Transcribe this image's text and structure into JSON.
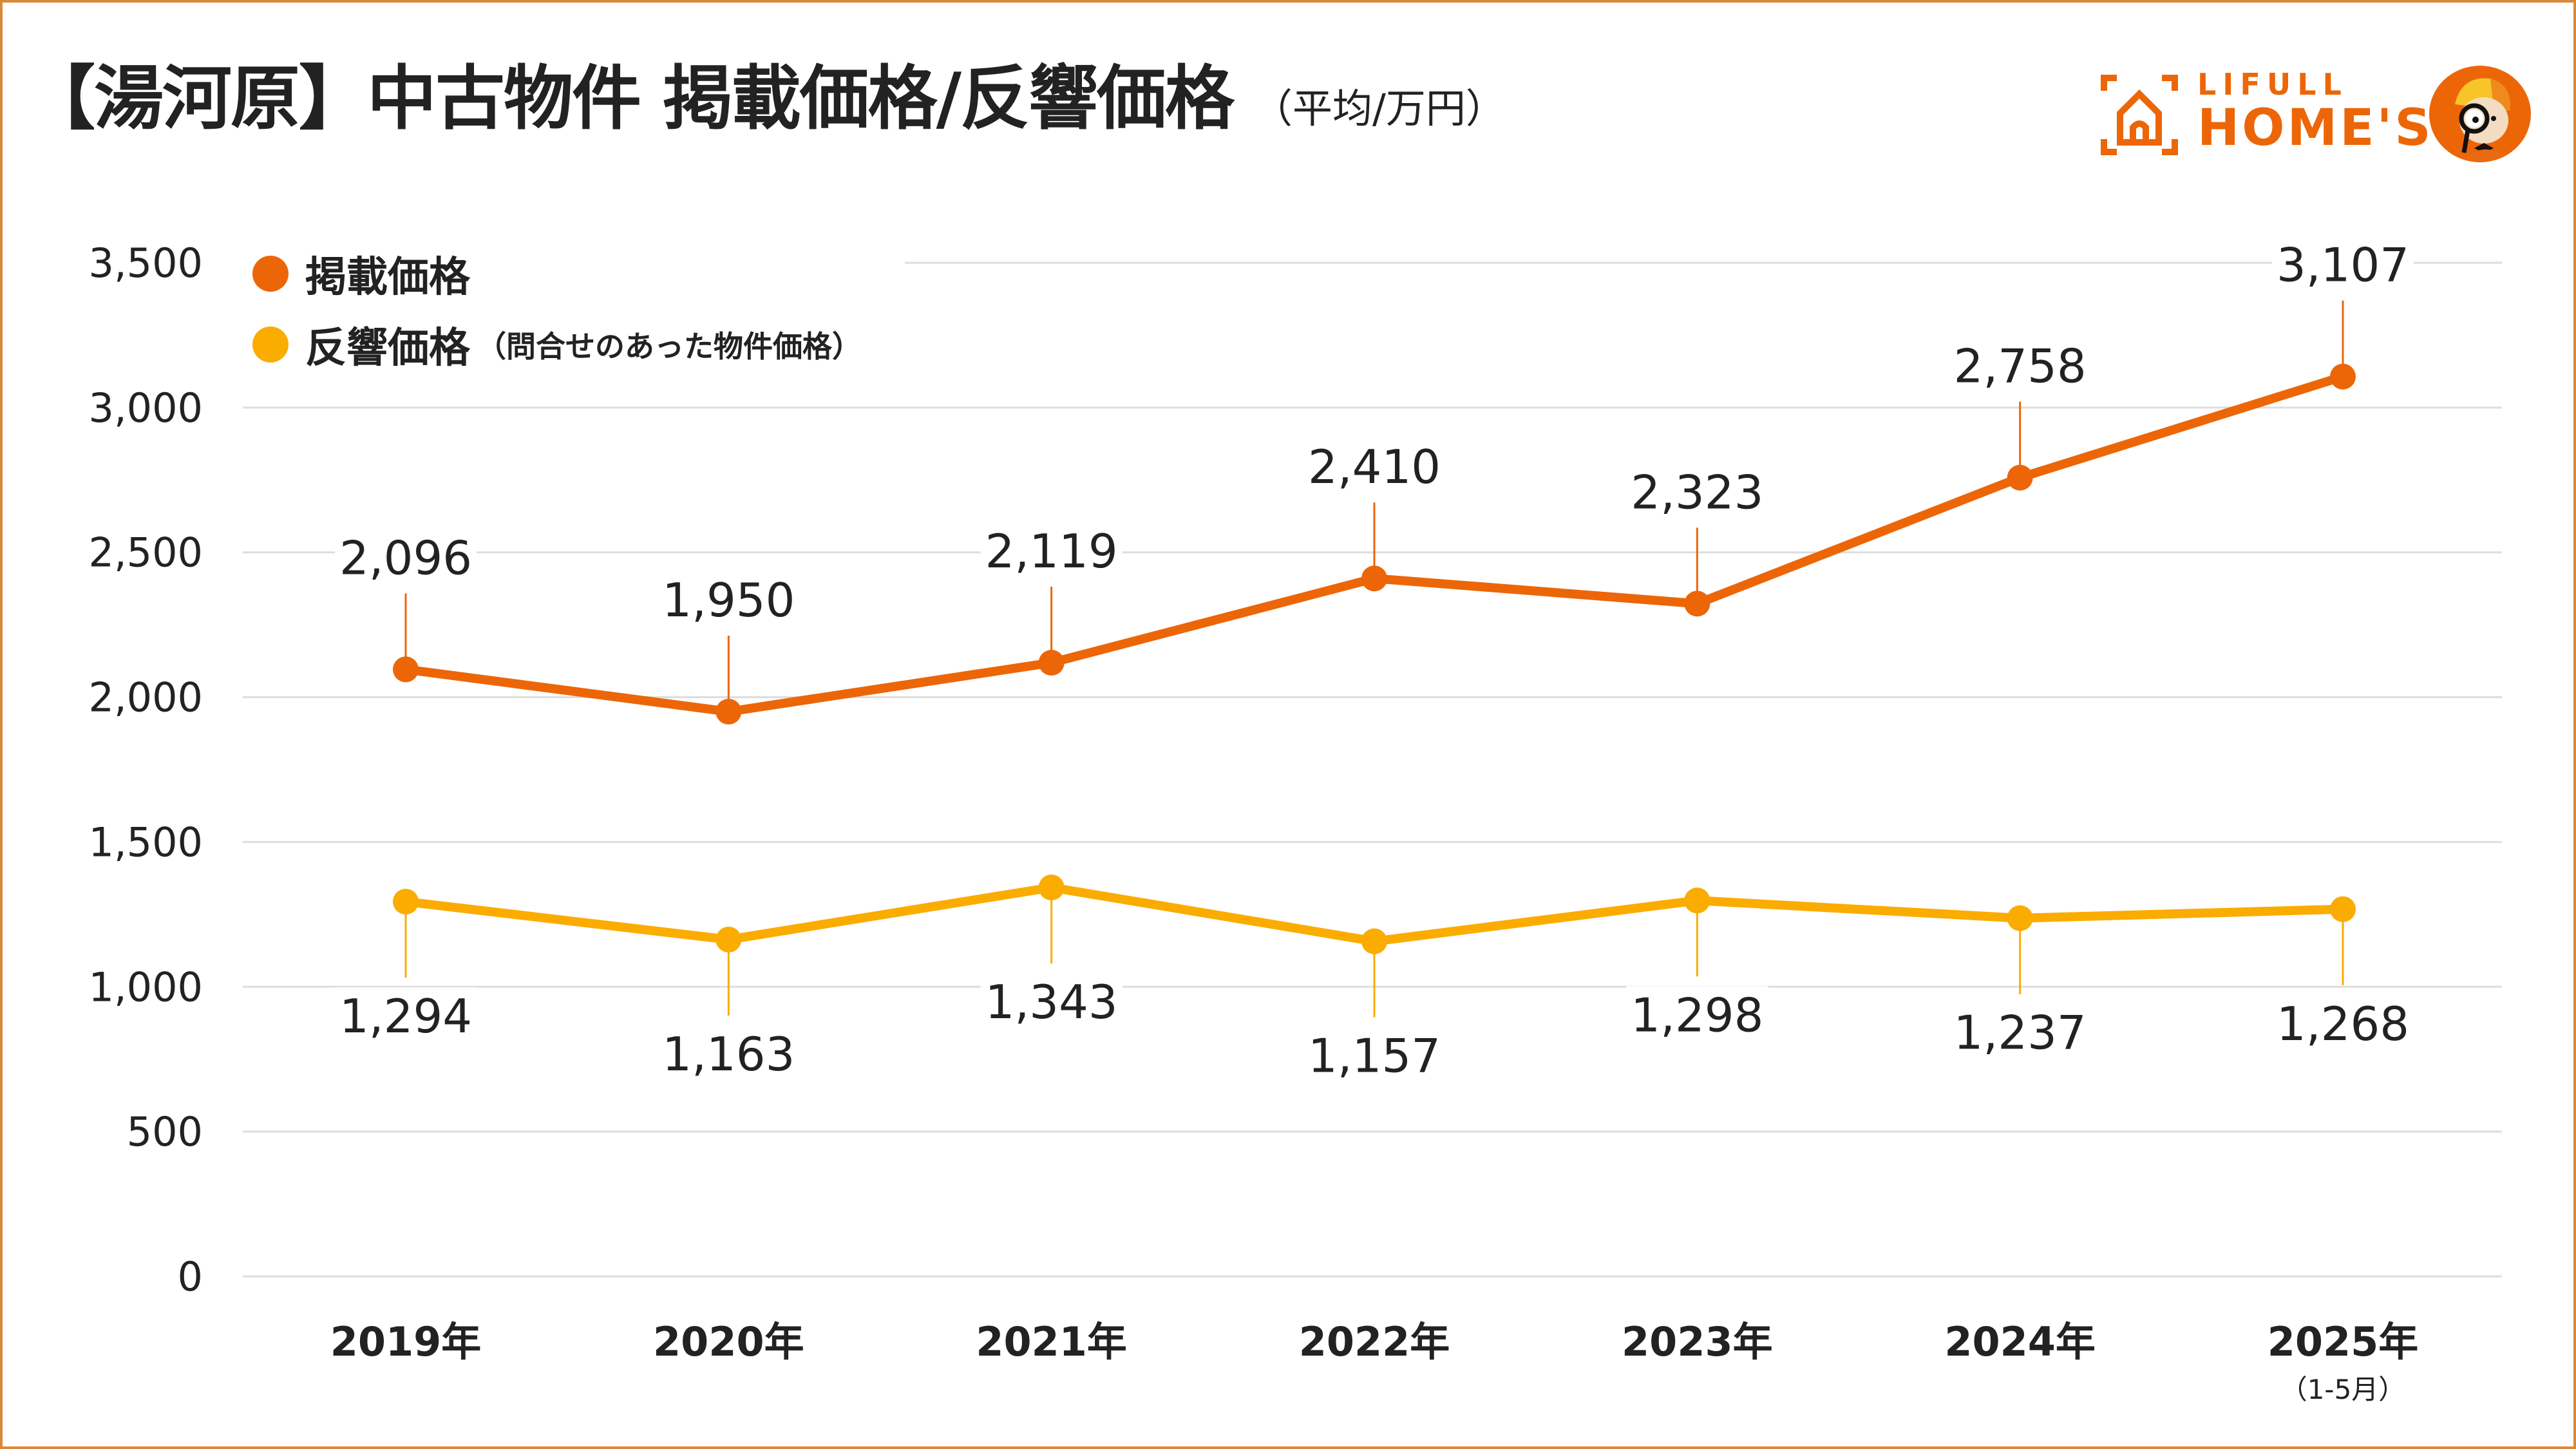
{
  "header": {
    "title": "【湯河原】中古物件 掲載価格/反響価格",
    "unit": "（平均/万円）"
  },
  "logo": {
    "line1": "LIFULL",
    "line2": "HOME'S",
    "icon": "house-bracket-icon",
    "mascot": "detective-mascot-icon"
  },
  "colors": {
    "listing": "#ec6608",
    "inquiry": "#fbac00",
    "grid": "#dddddd",
    "border": "#d9893a",
    "text": "#222222"
  },
  "chart_data": {
    "type": "line",
    "title": "【湯河原】中古物件 掲載価格/反響価格（平均/万円）",
    "xlabel": "",
    "ylabel": "",
    "categories": [
      "2019年",
      "2020年",
      "2021年",
      "2022年",
      "2023年",
      "2024年",
      "2025年"
    ],
    "category_notes": [
      "",
      "",
      "",
      "",
      "",
      "",
      "（1-5月）"
    ],
    "ylim": [
      0,
      3500
    ],
    "yticks": [
      0,
      500,
      1000,
      1500,
      2000,
      2500,
      3000,
      3500
    ],
    "ytick_labels": [
      "0",
      "500",
      "1,000",
      "1,500",
      "2,000",
      "2,500",
      "3,000",
      "3,500"
    ],
    "grid": true,
    "legend_position": "top-left",
    "series": [
      {
        "name": "掲載価格",
        "note": "",
        "color": "#ec6608",
        "values": [
          2096,
          1950,
          2119,
          2410,
          2323,
          2758,
          3107
        ],
        "labels": [
          "2,096",
          "1,950",
          "2,119",
          "2,410",
          "2,323",
          "2,758",
          "3,107"
        ],
        "label_position": "above"
      },
      {
        "name": "反響価格",
        "note": "（問合せのあった物件価格）",
        "color": "#fbac00",
        "values": [
          1294,
          1163,
          1343,
          1157,
          1298,
          1237,
          1268
        ],
        "labels": [
          "1,294",
          "1,163",
          "1,343",
          "1,157",
          "1,298",
          "1,237",
          "1,268"
        ],
        "label_position": "below"
      }
    ]
  }
}
